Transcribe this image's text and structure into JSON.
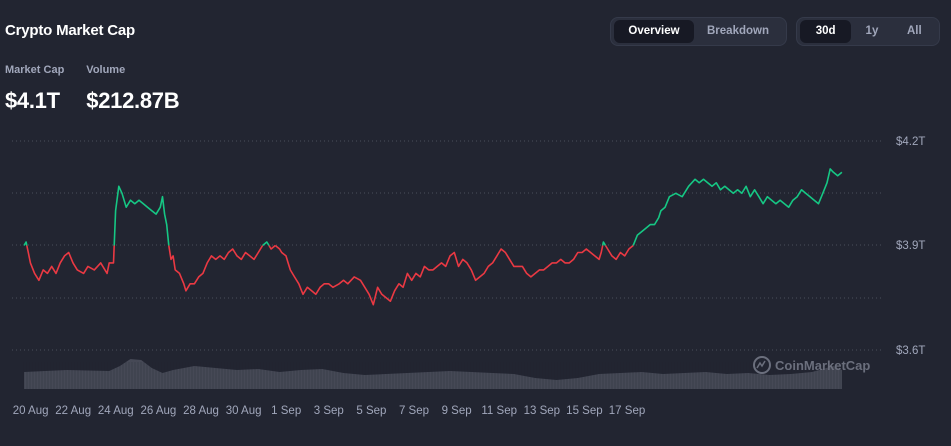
{
  "header": {
    "title": "Crypto Market Cap",
    "view_tabs": [
      {
        "label": "Overview",
        "active": true
      },
      {
        "label": "Breakdown",
        "active": false
      }
    ],
    "range_tabs": [
      {
        "label": "30d",
        "active": true
      },
      {
        "label": "1y",
        "active": false
      },
      {
        "label": "All",
        "active": false
      }
    ]
  },
  "stats": {
    "market_cap_label": "Market Cap",
    "market_cap_value": "$4.1T",
    "volume_label": "Volume",
    "volume_value": "$212.87B"
  },
  "watermark": "CoinMarketCap",
  "colors": {
    "background": "#222531",
    "up": "#16c784",
    "down": "#ea3943",
    "volume": "#4a4e5b"
  },
  "chart_data": {
    "type": "line",
    "title": "",
    "xlabel": "",
    "ylabel": "",
    "baseline": 3.9,
    "ylim": [
      3.6,
      4.2
    ],
    "yticks": [
      "$4.2T",
      "$3.9T",
      "$3.6T"
    ],
    "xticks": [
      "20 Aug",
      "22 Aug",
      "24 Aug",
      "26 Aug",
      "28 Aug",
      "30 Aug",
      "1 Sep",
      "3 Sep",
      "5 Sep",
      "7 Sep",
      "9 Sep",
      "11 Sep",
      "13 Sep",
      "15 Sep",
      "17 Sep"
    ],
    "grid": "horizontal dotted",
    "x_day_start": 0,
    "x_day_end": 29.8,
    "series": [
      {
        "values_trillions": [
          [
            0.0,
            3.9
          ],
          [
            0.1,
            3.91
          ],
          [
            0.2,
            3.88
          ],
          [
            0.3,
            3.85
          ],
          [
            0.5,
            3.82
          ],
          [
            0.7,
            3.8
          ],
          [
            0.9,
            3.83
          ],
          [
            1.1,
            3.82
          ],
          [
            1.3,
            3.84
          ],
          [
            1.5,
            3.82
          ],
          [
            1.7,
            3.85
          ],
          [
            1.9,
            3.87
          ],
          [
            2.1,
            3.88
          ],
          [
            2.3,
            3.85
          ],
          [
            2.5,
            3.83
          ],
          [
            2.8,
            3.82
          ],
          [
            3.0,
            3.84
          ],
          [
            3.3,
            3.83
          ],
          [
            3.6,
            3.85
          ],
          [
            3.9,
            3.82
          ],
          [
            4.0,
            3.85
          ],
          [
            4.2,
            3.85
          ],
          [
            4.3,
            4.0
          ],
          [
            4.45,
            4.07
          ],
          [
            4.6,
            4.05
          ],
          [
            4.8,
            4.01
          ],
          [
            5.0,
            4.03
          ],
          [
            5.2,
            4.02
          ],
          [
            5.4,
            4.03
          ],
          [
            5.6,
            4.02
          ],
          [
            5.8,
            4.01
          ],
          [
            6.0,
            4.0
          ],
          [
            6.2,
            3.99
          ],
          [
            6.4,
            4.01
          ],
          [
            6.5,
            4.04
          ],
          [
            6.6,
            3.99
          ],
          [
            6.7,
            3.96
          ],
          [
            6.8,
            3.9
          ],
          [
            6.9,
            3.86
          ],
          [
            7.0,
            3.87
          ],
          [
            7.1,
            3.83
          ],
          [
            7.3,
            3.82
          ],
          [
            7.5,
            3.79
          ],
          [
            7.6,
            3.77
          ],
          [
            7.8,
            3.79
          ],
          [
            8.0,
            3.79
          ],
          [
            8.2,
            3.81
          ],
          [
            8.4,
            3.82
          ],
          [
            8.6,
            3.85
          ],
          [
            8.8,
            3.87
          ],
          [
            9.0,
            3.86
          ],
          [
            9.2,
            3.87
          ],
          [
            9.4,
            3.86
          ],
          [
            9.6,
            3.88
          ],
          [
            9.8,
            3.89
          ],
          [
            10.0,
            3.87
          ],
          [
            10.2,
            3.86
          ],
          [
            10.4,
            3.88
          ],
          [
            10.6,
            3.87
          ],
          [
            10.8,
            3.86
          ],
          [
            11.0,
            3.88
          ],
          [
            11.2,
            3.9
          ],
          [
            11.4,
            3.91
          ],
          [
            11.6,
            3.89
          ],
          [
            11.8,
            3.9
          ],
          [
            12.0,
            3.89
          ],
          [
            12.1,
            3.88
          ],
          [
            12.3,
            3.87
          ],
          [
            12.4,
            3.85
          ],
          [
            12.5,
            3.83
          ],
          [
            12.7,
            3.81
          ],
          [
            12.9,
            3.79
          ],
          [
            13.1,
            3.76
          ],
          [
            13.3,
            3.78
          ],
          [
            13.5,
            3.77
          ],
          [
            13.7,
            3.76
          ],
          [
            13.9,
            3.78
          ],
          [
            14.1,
            3.79
          ],
          [
            14.3,
            3.79
          ],
          [
            14.5,
            3.78
          ],
          [
            14.8,
            3.79
          ],
          [
            15.0,
            3.8
          ],
          [
            15.2,
            3.79
          ],
          [
            15.5,
            3.81
          ],
          [
            15.8,
            3.8
          ],
          [
            16.0,
            3.78
          ],
          [
            16.2,
            3.76
          ],
          [
            16.4,
            3.73
          ],
          [
            16.6,
            3.78
          ],
          [
            16.8,
            3.76
          ],
          [
            17.0,
            3.75
          ],
          [
            17.2,
            3.74
          ],
          [
            17.4,
            3.77
          ],
          [
            17.6,
            3.79
          ],
          [
            17.8,
            3.78
          ],
          [
            18.0,
            3.82
          ],
          [
            18.2,
            3.8
          ],
          [
            18.4,
            3.82
          ],
          [
            18.6,
            3.81
          ],
          [
            18.8,
            3.84
          ],
          [
            19.0,
            3.83
          ],
          [
            19.2,
            3.83
          ],
          [
            19.4,
            3.84
          ],
          [
            19.6,
            3.85
          ],
          [
            19.8,
            3.84
          ],
          [
            20.0,
            3.87
          ],
          [
            20.2,
            3.88
          ],
          [
            20.4,
            3.84
          ],
          [
            20.6,
            3.86
          ],
          [
            20.8,
            3.85
          ],
          [
            21.0,
            3.83
          ],
          [
            21.2,
            3.8
          ],
          [
            21.4,
            3.81
          ],
          [
            21.6,
            3.82
          ],
          [
            21.8,
            3.84
          ],
          [
            22.0,
            3.85
          ],
          [
            22.2,
            3.87
          ],
          [
            22.4,
            3.89
          ],
          [
            22.6,
            3.88
          ],
          [
            22.8,
            3.86
          ],
          [
            23.0,
            3.84
          ],
          [
            23.2,
            3.84
          ],
          [
            23.4,
            3.84
          ],
          [
            23.6,
            3.82
          ],
          [
            23.8,
            3.81
          ],
          [
            24.0,
            3.82
          ],
          [
            24.2,
            3.83
          ],
          [
            24.4,
            3.83
          ],
          [
            24.6,
            3.84
          ],
          [
            24.8,
            3.85
          ],
          [
            25.0,
            3.85
          ],
          [
            25.2,
            3.86
          ],
          [
            25.4,
            3.85
          ],
          [
            25.6,
            3.85
          ],
          [
            25.8,
            3.86
          ],
          [
            26.0,
            3.88
          ],
          [
            26.2,
            3.88
          ],
          [
            26.4,
            3.89
          ],
          [
            26.6,
            3.88
          ],
          [
            26.8,
            3.87
          ],
          [
            27.0,
            3.86
          ],
          [
            27.1,
            3.88
          ],
          [
            27.2,
            3.91
          ],
          [
            27.3,
            3.9
          ],
          [
            27.5,
            3.88
          ],
          [
            27.6,
            3.87
          ],
          [
            27.8,
            3.86
          ],
          [
            28.0,
            3.88
          ],
          [
            28.2,
            3.87
          ],
          [
            28.4,
            3.89
          ],
          [
            28.6,
            3.9
          ],
          [
            28.8,
            3.93
          ],
          [
            29.0,
            3.94
          ],
          [
            29.2,
            3.95
          ],
          [
            29.4,
            3.96
          ],
          [
            29.6,
            3.96
          ],
          [
            29.8,
            3.98
          ]
        ],
        "continued_values": [
          [
            29.9,
            4.0
          ],
          [
            30.1,
            4.01
          ],
          [
            30.3,
            4.04
          ],
          [
            30.6,
            4.05
          ],
          [
            30.9,
            4.04
          ],
          [
            31.2,
            4.07
          ],
          [
            31.5,
            4.09
          ],
          [
            31.7,
            4.08
          ],
          [
            31.9,
            4.09
          ],
          [
            32.1,
            4.08
          ],
          [
            32.3,
            4.07
          ],
          [
            32.5,
            4.08
          ],
          [
            32.7,
            4.06
          ],
          [
            32.9,
            4.07
          ],
          [
            33.1,
            4.06
          ],
          [
            33.3,
            4.05
          ],
          [
            33.5,
            4.06
          ],
          [
            33.7,
            4.05
          ],
          [
            33.9,
            4.07
          ],
          [
            34.1,
            4.04
          ],
          [
            34.3,
            4.06
          ],
          [
            34.5,
            4.04
          ],
          [
            34.7,
            4.02
          ],
          [
            34.9,
            4.04
          ],
          [
            35.1,
            4.03
          ],
          [
            35.3,
            4.02
          ],
          [
            35.5,
            4.03
          ],
          [
            35.7,
            4.02
          ],
          [
            35.9,
            4.01
          ],
          [
            36.1,
            4.03
          ],
          [
            36.3,
            4.04
          ],
          [
            36.5,
            4.06
          ],
          [
            36.7,
            4.05
          ],
          [
            36.9,
            4.04
          ],
          [
            37.1,
            4.03
          ],
          [
            37.3,
            4.02
          ],
          [
            37.5,
            4.05
          ],
          [
            37.7,
            4.08
          ],
          [
            37.85,
            4.12
          ],
          [
            38.0,
            4.11
          ],
          [
            38.2,
            4.1
          ],
          [
            38.4,
            4.11
          ]
        ]
      }
    ]
  }
}
